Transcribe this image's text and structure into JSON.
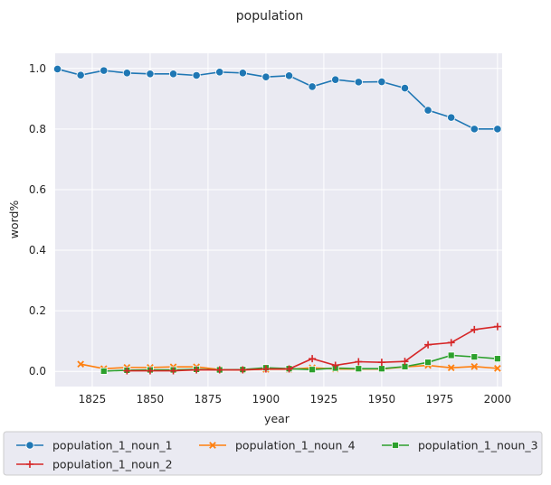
{
  "chart_data": {
    "type": "line",
    "title": "population",
    "xlabel": "year",
    "ylabel": "word%",
    "xlim": [
      1809,
      2002
    ],
    "ylim": [
      -0.05,
      1.05
    ],
    "xticks": [
      1825,
      1850,
      1875,
      1900,
      1925,
      1950,
      1975,
      2000
    ],
    "yticks": [
      0.0,
      0.2,
      0.4,
      0.6,
      0.8,
      1.0
    ],
    "xtick_labels": [
      "1825",
      "1850",
      "1875",
      "1900",
      "1925",
      "1950",
      "1975",
      "2000"
    ],
    "ytick_labels": [
      "0.0",
      "0.2",
      "0.4",
      "0.6",
      "0.8",
      "1.0"
    ],
    "grid": true,
    "legend_position": "bottom",
    "series": [
      {
        "name": "population_1_noun_1",
        "color": "#1f77b4",
        "marker": "circle",
        "x": [
          1810,
          1820,
          1830,
          1840,
          1850,
          1860,
          1870,
          1880,
          1890,
          1900,
          1910,
          1920,
          1930,
          1940,
          1950,
          1960,
          1970,
          1980,
          1990,
          2000
        ],
        "y": [
          0.998,
          0.978,
          0.993,
          0.985,
          0.982,
          0.982,
          0.977,
          0.988,
          0.985,
          0.972,
          0.976,
          0.94,
          0.963,
          0.955,
          0.956,
          0.935,
          0.862,
          0.838,
          0.8,
          0.8
        ]
      },
      {
        "name": "population_1_noun_4",
        "color": "#ff7f0e",
        "marker": "x",
        "x": [
          1820,
          1830,
          1840,
          1850,
          1860,
          1870,
          1880,
          1890,
          1900,
          1910,
          1920,
          1930,
          1940,
          1950,
          1960,
          1970,
          1980,
          1990,
          2000
        ],
        "y": [
          0.024,
          0.009,
          0.013,
          0.013,
          0.015,
          0.015,
          0.006,
          0.005,
          0.007,
          0.007,
          0.012,
          0.008,
          0.008,
          0.008,
          0.015,
          0.02,
          0.012,
          0.016,
          0.01
        ]
      },
      {
        "name": "population_1_noun_3",
        "color": "#2ca02c",
        "marker": "square",
        "x": [
          1830,
          1840,
          1850,
          1860,
          1870,
          1880,
          1890,
          1900,
          1910,
          1920,
          1930,
          1940,
          1950,
          1960,
          1970,
          1980,
          1990,
          2000
        ],
        "y": [
          0.001,
          0.004,
          0.005,
          0.005,
          0.007,
          0.005,
          0.006,
          0.012,
          0.009,
          0.006,
          0.011,
          0.009,
          0.009,
          0.016,
          0.03,
          0.053,
          0.048,
          0.042
        ]
      },
      {
        "name": "population_1_noun_2",
        "color": "#d62728",
        "marker": "plus",
        "x": [
          1840,
          1850,
          1860,
          1870,
          1880,
          1890,
          1900,
          1910,
          1920,
          1930,
          1940,
          1950,
          1960,
          1970,
          1980,
          1990,
          2000
        ],
        "y": [
          0.002,
          0.002,
          0.002,
          0.005,
          0.005,
          0.005,
          0.008,
          0.008,
          0.042,
          0.02,
          0.032,
          0.03,
          0.033,
          0.088,
          0.095,
          0.138,
          0.148
        ]
      }
    ]
  }
}
